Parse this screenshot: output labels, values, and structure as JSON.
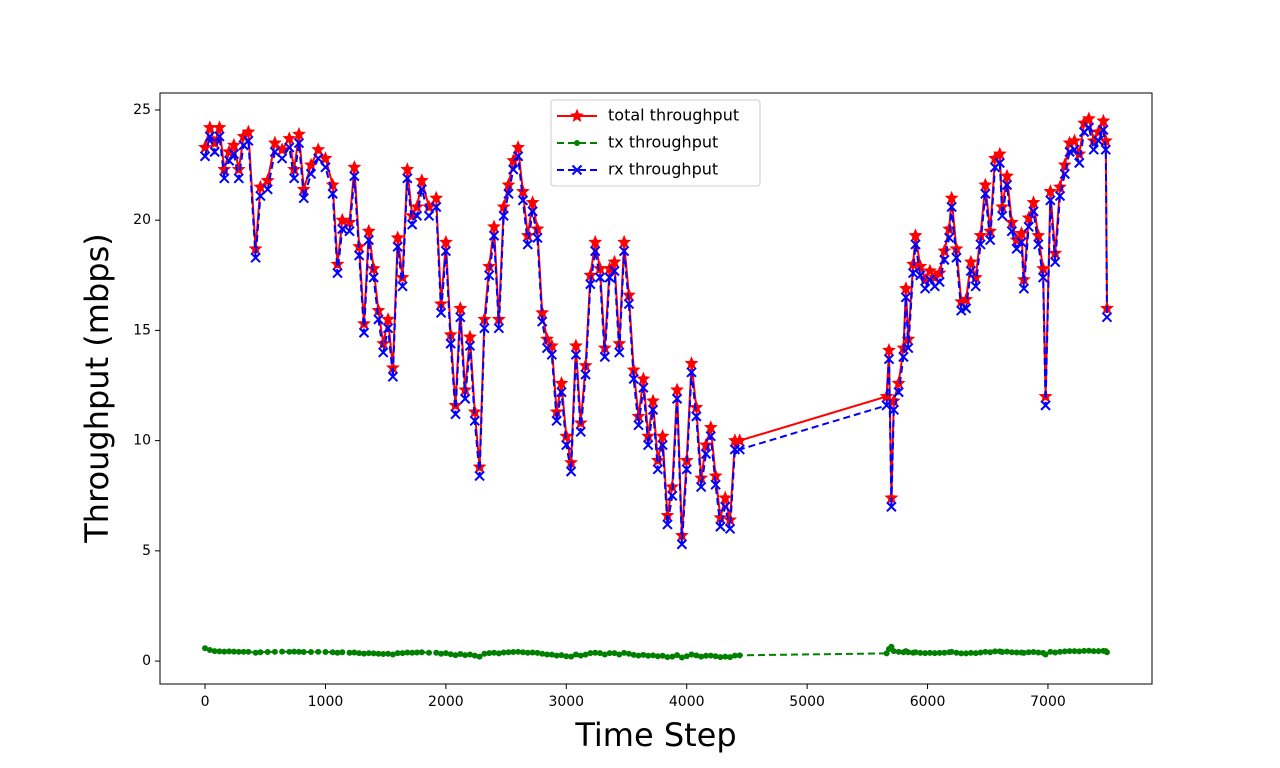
{
  "chart_data": {
    "type": "line",
    "xlabel": "Time Step",
    "ylabel": "Throughput (mbps)",
    "xlim": [
      -374,
      7864
    ],
    "ylim": [
      -1.04,
      25.77
    ],
    "xticks": [
      0,
      1000,
      2000,
      3000,
      4000,
      5000,
      6000,
      7000
    ],
    "yticks": [
      0,
      5,
      10,
      15,
      20,
      25
    ],
    "legend": "upper center",
    "x": [
      0,
      40,
      80,
      120,
      160,
      200,
      240,
      280,
      320,
      360,
      420,
      460,
      520,
      580,
      640,
      700,
      740,
      780,
      820,
      880,
      940,
      1000,
      1060,
      1100,
      1140,
      1200,
      1240,
      1280,
      1320,
      1360,
      1400,
      1440,
      1480,
      1520,
      1560,
      1600,
      1640,
      1680,
      1720,
      1760,
      1800,
      1860,
      1920,
      1960,
      2000,
      2040,
      2080,
      2120,
      2160,
      2200,
      2240,
      2280,
      2320,
      2360,
      2400,
      2440,
      2480,
      2520,
      2560,
      2600,
      2640,
      2680,
      2720,
      2760,
      2800,
      2840,
      2880,
      2920,
      2960,
      3000,
      3040,
      3080,
      3120,
      3160,
      3200,
      3240,
      3280,
      3320,
      3360,
      3400,
      3440,
      3480,
      3520,
      3560,
      3600,
      3640,
      3680,
      3720,
      3760,
      3800,
      3840,
      3880,
      3920,
      3960,
      4000,
      4040,
      4080,
      4120,
      4160,
      4200,
      4240,
      4280,
      4320,
      4360,
      4400,
      4440,
      5660,
      5680,
      5700,
      5720,
      5760,
      5800,
      5820,
      5840,
      5880,
      5900,
      5940,
      5980,
      6020,
      6060,
      6100,
      6140,
      6180,
      6200,
      6240,
      6280,
      6320,
      6360,
      6400,
      6440,
      6480,
      6520,
      6560,
      6600,
      6620,
      6660,
      6700,
      6740,
      6780,
      6800,
      6840,
      6880,
      6920,
      6960,
      6980,
      7020,
      7060,
      7100,
      7140,
      7180,
      7220,
      7260,
      7300,
      7340,
      7380,
      7420,
      7460,
      7480,
      7490
    ],
    "series": [
      {
        "name": "total throughput",
        "color": "#ff0000",
        "linestyle": "solid",
        "marker": "star",
        "values": [
          23.3,
          24.2,
          23.5,
          24.2,
          22.3,
          23.1,
          23.4,
          22.3,
          23.8,
          24.0,
          18.7,
          21.5,
          21.8,
          23.5,
          23.2,
          23.7,
          22.3,
          23.9,
          21.4,
          22.5,
          23.2,
          22.8,
          21.6,
          18.0,
          20.0,
          19.9,
          22.4,
          18.8,
          15.3,
          19.5,
          17.8,
          15.9,
          14.4,
          15.5,
          13.3,
          19.2,
          17.4,
          22.3,
          20.2,
          20.6,
          21.8,
          20.6,
          21.0,
          16.2,
          19.0,
          14.8,
          11.6,
          16.0,
          12.3,
          14.7,
          11.3,
          8.8,
          15.5,
          17.9,
          19.7,
          15.5,
          20.6,
          21.6,
          22.7,
          23.3,
          21.3,
          19.3,
          20.8,
          19.6,
          15.8,
          14.6,
          14.3,
          11.3,
          12.6,
          10.2,
          9.0,
          14.3,
          10.8,
          13.4,
          17.5,
          19.0,
          17.8,
          14.2,
          17.8,
          18.1,
          14.4,
          19.0,
          16.6,
          13.2,
          11.1,
          12.8,
          10.2,
          11.8,
          9.1,
          10.2,
          6.6,
          7.9,
          12.3,
          5.7,
          9.1,
          13.5,
          11.5,
          8.3,
          9.8,
          10.6,
          8.4,
          6.5,
          7.4,
          6.4,
          10.0,
          10.0,
          12.0,
          14.1,
          7.4,
          11.8,
          12.6,
          14.2,
          16.9,
          14.6,
          18.0,
          19.3,
          17.9,
          17.3,
          17.7,
          17.4,
          17.6,
          18.6,
          19.6,
          21.0,
          18.7,
          16.3,
          16.4,
          18.1,
          17.4,
          19.3,
          21.6,
          19.5,
          22.8,
          23.0,
          20.6,
          22.0,
          19.9,
          19.1,
          19.4,
          17.3,
          20.1,
          20.8,
          19.3,
          17.8,
          12.0,
          21.3,
          18.5,
          21.5,
          22.5,
          23.5,
          23.6,
          23.0,
          24.4,
          24.6,
          23.6,
          24.0,
          24.5,
          23.6,
          16.0
        ]
      },
      {
        "name": "tx throughput",
        "color": "#008000",
        "linestyle": "dashed",
        "marker": "dot",
        "values": [
          0.58,
          0.5,
          0.45,
          0.44,
          0.43,
          0.44,
          0.43,
          0.42,
          0.42,
          0.42,
          0.38,
          0.4,
          0.41,
          0.42,
          0.43,
          0.42,
          0.43,
          0.42,
          0.41,
          0.41,
          0.42,
          0.41,
          0.4,
          0.38,
          0.4,
          0.38,
          0.39,
          0.36,
          0.34,
          0.36,
          0.35,
          0.33,
          0.32,
          0.33,
          0.3,
          0.36,
          0.36,
          0.39,
          0.38,
          0.39,
          0.4,
          0.38,
          0.38,
          0.33,
          0.36,
          0.31,
          0.27,
          0.32,
          0.27,
          0.3,
          0.25,
          0.2,
          0.33,
          0.36,
          0.38,
          0.35,
          0.39,
          0.4,
          0.41,
          0.42,
          0.4,
          0.38,
          0.39,
          0.37,
          0.33,
          0.3,
          0.29,
          0.25,
          0.27,
          0.22,
          0.2,
          0.3,
          0.25,
          0.29,
          0.36,
          0.38,
          0.36,
          0.3,
          0.36,
          0.36,
          0.3,
          0.37,
          0.33,
          0.28,
          0.25,
          0.28,
          0.24,
          0.26,
          0.22,
          0.24,
          0.18,
          0.2,
          0.27,
          0.16,
          0.22,
          0.3,
          0.26,
          0.2,
          0.24,
          0.25,
          0.22,
          0.18,
          0.2,
          0.18,
          0.25,
          0.26,
          0.35,
          0.55,
          0.65,
          0.45,
          0.42,
          0.4,
          0.45,
          0.4,
          0.38,
          0.4,
          0.37,
          0.36,
          0.37,
          0.36,
          0.37,
          0.38,
          0.4,
          0.42,
          0.38,
          0.35,
          0.35,
          0.37,
          0.36,
          0.39,
          0.42,
          0.4,
          0.44,
          0.44,
          0.41,
          0.43,
          0.4,
          0.39,
          0.39,
          0.37,
          0.4,
          0.41,
          0.39,
          0.37,
          0.3,
          0.42,
          0.39,
          0.42,
          0.44,
          0.45,
          0.45,
          0.44,
          0.46,
          0.47,
          0.45,
          0.45,
          0.46,
          0.45,
          0.4
        ]
      },
      {
        "name": "rx throughput",
        "color": "#0000ff",
        "linestyle": "dashed",
        "marker": "x",
        "values": [
          22.9,
          23.8,
          23.1,
          23.8,
          21.9,
          22.7,
          23.0,
          21.9,
          23.4,
          23.6,
          18.3,
          21.1,
          21.4,
          23.1,
          22.8,
          23.3,
          21.9,
          23.5,
          21.0,
          22.1,
          22.8,
          22.4,
          21.2,
          17.6,
          19.6,
          19.5,
          22.0,
          18.4,
          14.9,
          19.1,
          17.4,
          15.5,
          14.0,
          15.1,
          12.9,
          18.8,
          17.0,
          21.9,
          19.8,
          20.2,
          21.4,
          20.2,
          20.6,
          15.8,
          18.6,
          14.4,
          11.2,
          15.6,
          11.9,
          14.3,
          10.9,
          8.4,
          15.1,
          17.5,
          19.3,
          15.1,
          20.2,
          21.2,
          22.3,
          22.9,
          20.9,
          18.9,
          20.4,
          19.2,
          15.4,
          14.2,
          13.9,
          10.9,
          12.2,
          9.8,
          8.6,
          13.9,
          10.4,
          13.0,
          17.1,
          18.6,
          17.4,
          13.8,
          17.4,
          17.7,
          14.0,
          18.6,
          16.2,
          12.8,
          10.7,
          12.4,
          9.8,
          11.4,
          8.7,
          9.8,
          6.2,
          7.5,
          11.9,
          5.3,
          8.7,
          13.1,
          11.1,
          7.9,
          9.4,
          10.2,
          8.0,
          6.1,
          7.0,
          6.0,
          9.6,
          9.6,
          11.6,
          13.7,
          7.0,
          11.4,
          12.2,
          13.8,
          16.5,
          14.2,
          17.6,
          18.9,
          17.5,
          16.9,
          17.3,
          17.0,
          17.2,
          18.2,
          19.2,
          20.6,
          18.3,
          15.9,
          16.0,
          17.7,
          17.0,
          18.9,
          21.2,
          19.1,
          22.4,
          22.6,
          20.2,
          21.6,
          19.5,
          18.7,
          19.0,
          16.9,
          19.7,
          20.4,
          18.9,
          17.4,
          11.6,
          20.9,
          18.1,
          21.1,
          22.1,
          23.1,
          23.2,
          22.6,
          24.0,
          24.2,
          23.2,
          23.6,
          24.1,
          23.2,
          15.6
        ]
      }
    ]
  }
}
